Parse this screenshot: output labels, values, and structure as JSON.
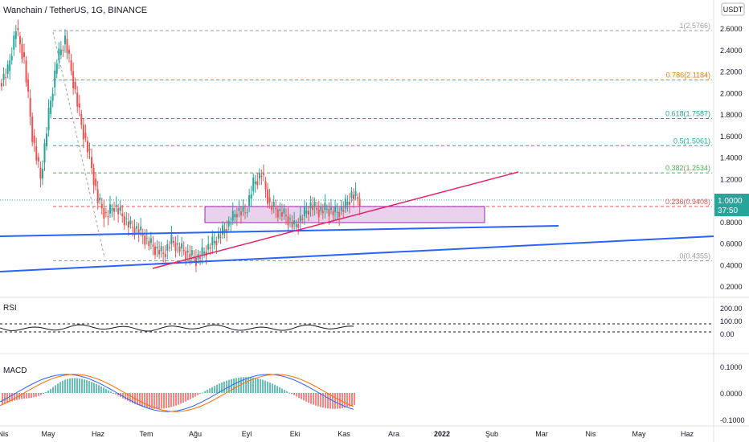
{
  "title": "Wanchain / TetherUS, 1G, BINANCE",
  "currency_badge": "USDT",
  "price_label": {
    "value": "1.0000",
    "countdown": "37:50",
    "color": "#26a69a"
  },
  "colors": {
    "up": "#26a69a",
    "down": "#ef5350",
    "trendline_blue": "#2962ff",
    "trendline_red": "#e91e63",
    "zone_fill": "#e1bee7",
    "zone_stroke": "#9c27b0"
  },
  "chart_data": [
    {
      "type": "candlestick",
      "name": "price",
      "y_ticks": [
        "2.6000",
        "2.4000",
        "2.2000",
        "2.0000",
        "1.8000",
        "1.6000",
        "1.4000",
        "1.2000",
        "1.0000",
        "0.8000",
        "0.6000",
        "0.4000",
        "0.2000"
      ],
      "ylim": [
        0.1,
        2.8
      ],
      "x_ticks": [
        "Nis",
        "May",
        "Haz",
        "Tem",
        "Ağu",
        "Eyl",
        "Eki",
        "Kas",
        "Ara",
        "2022",
        "Şub",
        "Mar",
        "Nis",
        "May",
        "Haz"
      ],
      "fib_levels": [
        {
          "label": "1(2.5766)",
          "value": 2.5766,
          "color": "#9e9e9e"
        },
        {
          "label": "0.786(2.1184)",
          "value": 2.1184,
          "color": "#f57c00"
        },
        {
          "label": "0.618(1.7587)",
          "value": 1.7587,
          "color": "#26a69a"
        },
        {
          "label": "0.5(1.5061)",
          "value": 1.5061,
          "color": "#26a69a"
        },
        {
          "label": "0.382(1.2534)",
          "value": 1.2534,
          "color": "#4caf50"
        },
        {
          "label": "0.236(0.9408)",
          "value": 0.9408,
          "color": "#ef5350"
        },
        {
          "label": "0(0.4355)",
          "value": 0.4355,
          "color": "#9e9e9e"
        }
      ],
      "close_approx": [
        2.2,
        2.6,
        2.3,
        1.6,
        1.2,
        1.8,
        2.3,
        2.5,
        2.1,
        1.7,
        1.4,
        1.0,
        0.85,
        0.95,
        0.85,
        0.75,
        0.72,
        0.62,
        0.55,
        0.5,
        0.62,
        0.55,
        0.5,
        0.45,
        0.52,
        0.6,
        0.68,
        0.78,
        0.9,
        0.88,
        1.15,
        1.25,
        0.95,
        0.9,
        0.85,
        0.75,
        0.85,
        0.95,
        0.9,
        0.92,
        0.88,
        0.92,
        1.05,
        1.0
      ]
    },
    {
      "type": "line",
      "name": "RSI",
      "y_ticks": [
        "200.00",
        "100.00",
        "0.00"
      ]
    },
    {
      "type": "histogram",
      "name": "MACD",
      "y_ticks": [
        "0.1000",
        "0.0000",
        "-0.1000"
      ]
    }
  ],
  "panels": {
    "rsi_label": "RSI",
    "macd_label": "MACD"
  }
}
